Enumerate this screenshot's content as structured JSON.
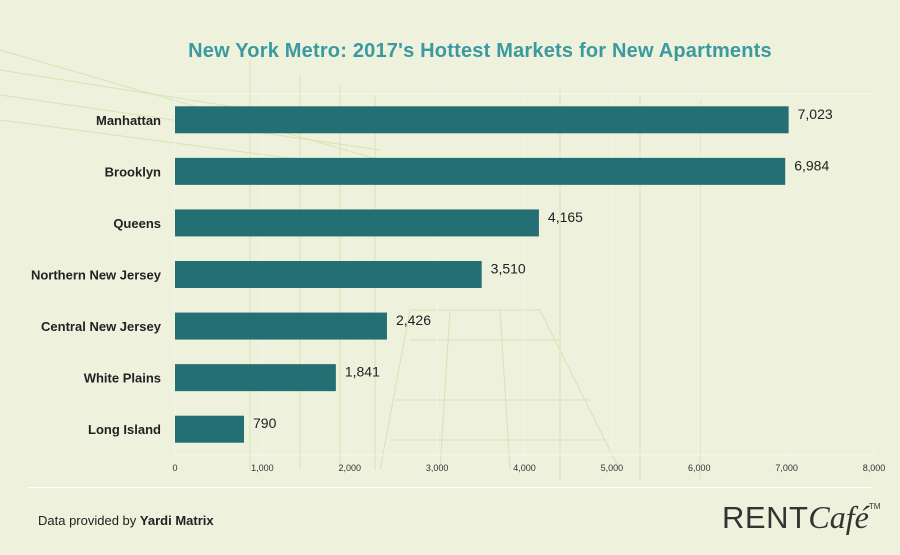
{
  "chart_data": {
    "type": "bar",
    "orientation": "horizontal",
    "title": "New York Metro: 2017's Hottest Markets for New Apartments",
    "categories": [
      "Manhattan",
      "Brooklyn",
      "Queens",
      "Northern New Jersey",
      "Central New Jersey",
      "White Plains",
      "Long Island"
    ],
    "values": [
      7023,
      6984,
      4165,
      3510,
      2426,
      1841,
      790
    ],
    "value_labels": [
      "7,023",
      "6,984",
      "4,165",
      "3,510",
      "2,426",
      "1,841",
      "790"
    ],
    "xticks": [
      "0",
      "1,000",
      "2,000",
      "3,000",
      "4,000",
      "5,000",
      "6,000",
      "7,000",
      "8,000"
    ],
    "xlim": [
      0,
      8000
    ],
    "xlabel": "",
    "ylabel": "",
    "grid": true,
    "legend": "none",
    "colors": {
      "bar": "#236f74",
      "title": "#3a9aa0",
      "grid": "#f4f5e8",
      "background": "#eef1dc"
    }
  },
  "footer": {
    "source_prefix": "Data provided by ",
    "source_name": "Yardi Matrix",
    "logo_text": "RENTCafé™"
  }
}
